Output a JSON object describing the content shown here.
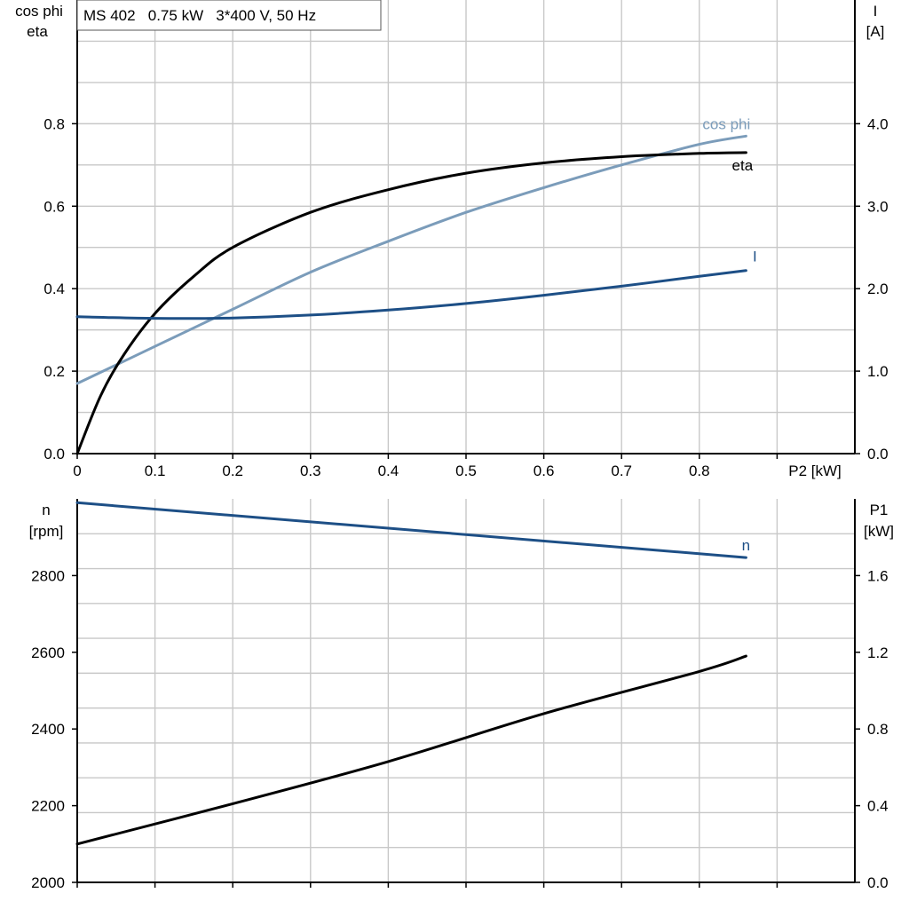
{
  "colors": {
    "cosphi": "#7b9cba",
    "eta": "#000000",
    "current": "#1d4f86",
    "speed": "#1d4f86",
    "p1": "#000000",
    "grid": "#c8c8c8"
  },
  "chart_data": [
    {
      "type": "line",
      "title": "MS 402   0.75 kW   3*400 V, 50 Hz",
      "xlabel": "P2 [kW]",
      "ylabel_left": [
        "cos phi",
        "eta"
      ],
      "ylabel_right": [
        "I",
        "[A]"
      ],
      "xlim": [
        0,
        1.0
      ],
      "ylim_left": [
        0,
        1.1
      ],
      "ylim_right": [
        0,
        5.5
      ],
      "x_ticks": [
        "0",
        "0.1",
        "0.2",
        "0.3",
        "0.4",
        "0.5",
        "0.6",
        "0.7",
        "0.8"
      ],
      "y_ticks_left": [
        "0.0",
        "0.2",
        "0.4",
        "0.6",
        "0.8"
      ],
      "y_ticks_right": [
        "0.0",
        "1.0",
        "2.0",
        "3.0",
        "4.0"
      ],
      "grid": true,
      "series": [
        {
          "name": "cos phi",
          "axis": "left",
          "x": [
            0,
            0.1,
            0.2,
            0.3,
            0.4,
            0.5,
            0.6,
            0.7,
            0.8,
            0.86
          ],
          "y": [
            0.17,
            0.26,
            0.35,
            0.44,
            0.515,
            0.585,
            0.645,
            0.7,
            0.75,
            0.77
          ]
        },
        {
          "name": "eta",
          "axis": "left",
          "x": [
            0,
            0.03,
            0.06,
            0.1,
            0.15,
            0.2,
            0.3,
            0.4,
            0.5,
            0.6,
            0.7,
            0.8,
            0.86
          ],
          "y": [
            0.0,
            0.14,
            0.24,
            0.34,
            0.43,
            0.5,
            0.585,
            0.64,
            0.68,
            0.705,
            0.72,
            0.728,
            0.73
          ]
        },
        {
          "name": "I",
          "axis": "right",
          "x": [
            0,
            0.1,
            0.2,
            0.3,
            0.4,
            0.5,
            0.6,
            0.7,
            0.8,
            0.86
          ],
          "y": [
            1.66,
            1.64,
            1.645,
            1.68,
            1.74,
            1.82,
            1.92,
            2.03,
            2.15,
            2.22
          ]
        }
      ]
    },
    {
      "type": "line",
      "xlim": [
        0,
        1.0
      ],
      "ylabel_left": [
        "n",
        "[rpm]"
      ],
      "ylabel_right": [
        "P1",
        "[kW]"
      ],
      "ylim_left": [
        2000,
        3000
      ],
      "ylim_right": [
        0,
        2.0
      ],
      "y_ticks_left": [
        "2000",
        "2200",
        "2400",
        "2600",
        "2800"
      ],
      "y_ticks_right": [
        "0.0",
        "0.4",
        "0.8",
        "1.2",
        "1.6"
      ],
      "grid": true,
      "series": [
        {
          "name": "n",
          "axis": "left",
          "x": [
            0,
            0.86
          ],
          "y": [
            2990,
            2847
          ]
        },
        {
          "name": "",
          "axis": "right",
          "x": [
            0,
            0.2,
            0.4,
            0.6,
            0.8,
            0.86
          ],
          "y": [
            0.2,
            0.41,
            0.63,
            0.88,
            1.1,
            1.18
          ]
        }
      ]
    }
  ]
}
